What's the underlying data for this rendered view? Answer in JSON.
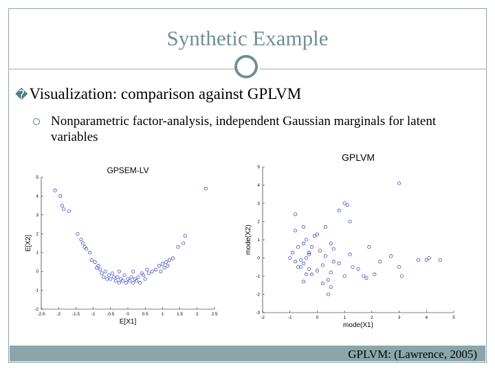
{
  "slide": {
    "title": "Synthetic Example",
    "bullet_main": "Visualization: comparison against GPLVM",
    "bullet_sub": "Nonparametric factor-analysis, independent Gaussian marginals for latent variables",
    "footer": "GPLVM: (Lawrence, 2005)",
    "accent_color": "#6f8f95",
    "bullet_glyph": "�"
  },
  "chart_data": [
    {
      "type": "scatter",
      "title": "GPSEM-LV",
      "xlabel": "E[X1]",
      "ylabel": "E[X2]",
      "xlim": [
        -2.5,
        2.5
      ],
      "ylim": [
        -2,
        5
      ],
      "xticks": [
        -2.5,
        -2,
        -1.5,
        -1,
        -0.5,
        0,
        0.5,
        1,
        1.5,
        2,
        2.5
      ],
      "yticks": [
        -2,
        -1,
        0,
        1,
        2,
        3,
        4,
        5
      ],
      "xtick_labels": [
        "-2.5",
        "-2",
        "-1.5",
        "-1",
        "-0.5",
        "0",
        "0.5",
        "1",
        "1.5",
        "2",
        "2.5"
      ],
      "ytick_labels": [
        "-2",
        "-1",
        "0",
        "1",
        "2",
        "3",
        "4",
        "5"
      ],
      "marker_color": "#1f2fb8",
      "points": [
        [
          2.25,
          4.4
        ],
        [
          -2.1,
          4.3
        ],
        [
          -1.95,
          4.0
        ],
        [
          -1.9,
          3.5
        ],
        [
          -1.85,
          3.3
        ],
        [
          -1.7,
          3.2
        ],
        [
          -1.45,
          2.0
        ],
        [
          -1.35,
          1.7
        ],
        [
          -1.3,
          1.5
        ],
        [
          -1.25,
          1.3
        ],
        [
          -1.2,
          1.2
        ],
        [
          -1.1,
          1.0
        ],
        [
          -1.05,
          0.6
        ],
        [
          -0.95,
          0.5
        ],
        [
          -0.85,
          0.3
        ],
        [
          -0.8,
          0.1
        ],
        [
          -0.75,
          -0.1
        ],
        [
          -0.7,
          -0.3
        ],
        [
          -0.6,
          -0.4
        ],
        [
          -0.5,
          -0.4
        ],
        [
          -0.45,
          -0.1
        ],
        [
          -0.4,
          -0.3
        ],
        [
          -0.35,
          -0.5
        ],
        [
          -0.3,
          -0.3
        ],
        [
          -0.25,
          -0.6
        ],
        [
          -0.2,
          -0.4
        ],
        [
          -0.15,
          -0.5
        ],
        [
          -0.1,
          -0.2
        ],
        [
          -0.05,
          -0.6
        ],
        [
          0.0,
          -0.4
        ],
        [
          0.05,
          -0.5
        ],
        [
          0.1,
          -0.3
        ],
        [
          0.15,
          -0.6
        ],
        [
          0.2,
          -0.4
        ],
        [
          0.25,
          -0.5
        ],
        [
          0.3,
          -0.3
        ],
        [
          0.35,
          -0.6
        ],
        [
          0.4,
          -0.1
        ],
        [
          0.45,
          -0.2
        ],
        [
          0.5,
          -0.4
        ],
        [
          0.6,
          -0.1
        ],
        [
          0.7,
          0.0
        ],
        [
          0.8,
          0.1
        ],
        [
          0.9,
          0.3
        ],
        [
          1.0,
          0.4
        ],
        [
          1.05,
          0.2
        ],
        [
          1.1,
          0.5
        ],
        [
          1.2,
          0.6
        ],
        [
          1.3,
          0.7
        ],
        [
          1.45,
          1.3
        ],
        [
          1.6,
          1.5
        ],
        [
          1.65,
          1.9
        ],
        [
          -0.55,
          -0.2
        ],
        [
          0.15,
          0.0
        ],
        [
          -0.25,
          0.0
        ],
        [
          0.55,
          0.1
        ],
        [
          -0.65,
          0.0
        ],
        [
          -0.9,
          0.2
        ],
        [
          0.95,
          0.0
        ],
        [
          1.15,
          0.3
        ]
      ]
    },
    {
      "type": "scatter",
      "title": "GPLVM",
      "xlabel": "mode(X1)",
      "ylabel": "mode(X2)",
      "xlim": [
        -2,
        5
      ],
      "ylim": [
        -3,
        5
      ],
      "xticks": [
        -2,
        -1,
        0,
        1,
        2,
        3,
        4,
        5
      ],
      "yticks": [
        -3,
        -2,
        -1,
        0,
        1,
        2,
        3,
        4,
        5
      ],
      "xtick_labels": [
        "-2",
        "-1",
        "0",
        "1",
        "2",
        "3",
        "4",
        "5"
      ],
      "ytick_labels": [
        "-3",
        "-2",
        "-1",
        "0",
        "1",
        "2",
        "3",
        "4",
        "5"
      ],
      "marker_color": "#1f2fb8",
      "points": [
        [
          3.0,
          4.1
        ],
        [
          1.1,
          2.9
        ],
        [
          1.0,
          3.0
        ],
        [
          0.8,
          2.6
        ],
        [
          -0.8,
          2.4
        ],
        [
          1.2,
          2.0
        ],
        [
          -0.5,
          1.7
        ],
        [
          0.3,
          1.7
        ],
        [
          -0.8,
          1.5
        ],
        [
          0.0,
          1.3
        ],
        [
          -0.1,
          1.2
        ],
        [
          -0.4,
          1.0
        ],
        [
          -0.5,
          0.8
        ],
        [
          0.5,
          0.8
        ],
        [
          -0.7,
          0.6
        ],
        [
          -0.2,
          0.6
        ],
        [
          0.6,
          0.5
        ],
        [
          -0.9,
          0.3
        ],
        [
          -0.3,
          0.2
        ],
        [
          0.3,
          0.1
        ],
        [
          -1.0,
          0.0
        ],
        [
          -0.6,
          -0.1
        ],
        [
          -0.4,
          0.0
        ],
        [
          -0.5,
          -0.3
        ],
        [
          -0.7,
          -0.5
        ],
        [
          -0.3,
          -0.6
        ],
        [
          -0.4,
          -0.9
        ],
        [
          0.0,
          -0.7
        ],
        [
          0.2,
          -0.4
        ],
        [
          0.5,
          -0.8
        ],
        [
          0.8,
          -0.3
        ],
        [
          1.0,
          -1.0
        ],
        [
          1.3,
          -0.5
        ],
        [
          1.2,
          0.2
        ],
        [
          1.5,
          -0.6
        ],
        [
          1.7,
          -1.0
        ],
        [
          0.4,
          -1.2
        ],
        [
          0.2,
          -1.4
        ],
        [
          0.5,
          -1.6
        ],
        [
          -0.5,
          -1.3
        ],
        [
          0.4,
          -2.0
        ],
        [
          1.8,
          -1.1
        ],
        [
          2.1,
          -0.9
        ],
        [
          3.0,
          -0.5
        ],
        [
          3.1,
          -1.0
        ],
        [
          4.0,
          -0.1
        ],
        [
          4.1,
          0.0
        ],
        [
          4.5,
          -0.1
        ],
        [
          3.7,
          -0.1
        ],
        [
          2.7,
          0.1
        ],
        [
          1.9,
          0.6
        ],
        [
          2.3,
          -0.2
        ],
        [
          -0.6,
          -0.5
        ],
        [
          -0.3,
          0.3
        ],
        [
          -0.8,
          -0.2
        ],
        [
          0.1,
          0.4
        ],
        [
          -0.2,
          -0.9
        ],
        [
          0.6,
          -0.2
        ]
      ]
    }
  ]
}
